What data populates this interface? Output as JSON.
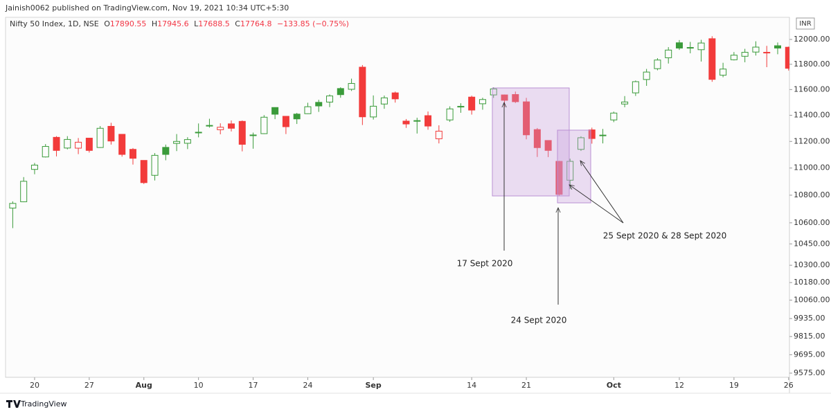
{
  "header": "Jainish0062 published on TradingView.com, Nov 19, 2021 10:34 UTC+5:30",
  "legend": {
    "symbol": "Nifty 50 Index, 1D, NSE",
    "o_label": "O",
    "o": 17890.55,
    "h_label": "H",
    "h": 17945.6,
    "l_label": "L",
    "l": 17688.5,
    "c_label": "C",
    "c": 17764.8,
    "change": "−133.85 (−0.75%)"
  },
  "currency": "INR",
  "footer": "TradingView",
  "annotations": [
    "17 Sept 2020",
    "24 Sept 2020",
    "25 Sept 2020 & 28 Sept 2020"
  ],
  "chart_data": {
    "type": "candlestick",
    "log": true,
    "grid": false,
    "up_color": "#3a9b3a",
    "down_color": "#f23b3b",
    "x": [
      "2020-07-16",
      "2020-07-17",
      "2020-07-20",
      "2020-07-21",
      "2020-07-22",
      "2020-07-23",
      "2020-07-24",
      "2020-07-27",
      "2020-07-28",
      "2020-07-29",
      "2020-07-30",
      "2020-07-31",
      "2020-08-03",
      "2020-08-04",
      "2020-08-05",
      "2020-08-06",
      "2020-08-07",
      "2020-08-10",
      "2020-08-11",
      "2020-08-12",
      "2020-08-13",
      "2020-08-14",
      "2020-08-17",
      "2020-08-18",
      "2020-08-19",
      "2020-08-20",
      "2020-08-21",
      "2020-08-24",
      "2020-08-25",
      "2020-08-26",
      "2020-08-27",
      "2020-08-28",
      "2020-08-31",
      "2020-09-01",
      "2020-09-02",
      "2020-09-03",
      "2020-09-04",
      "2020-09-07",
      "2020-09-08",
      "2020-09-09",
      "2020-09-10",
      "2020-09-11",
      "2020-09-14",
      "2020-09-15",
      "2020-09-16",
      "2020-09-17",
      "2020-09-18",
      "2020-09-21",
      "2020-09-22",
      "2020-09-23",
      "2020-09-24",
      "2020-09-25",
      "2020-09-28",
      "2020-09-29",
      "2020-09-30",
      "2020-10-01",
      "2020-10-05",
      "2020-10-06",
      "2020-10-07",
      "2020-10-08",
      "2020-10-09",
      "2020-10-12",
      "2020-10-13",
      "2020-10-14",
      "2020-10-15",
      "2020-10-16",
      "2020-10-19",
      "2020-10-20",
      "2020-10-21",
      "2020-10-22",
      "2020-10-23",
      "2020-10-26"
    ],
    "open": [
      10706,
      10752,
      10990,
      11083,
      11231,
      11150,
      11149,
      11225,
      11154,
      11315,
      11254,
      11140,
      11057,
      10946,
      11155,
      11185,
      11186,
      11270,
      11322,
      11289,
      11334,
      11353,
      11249,
      11259,
      11460,
      11392,
      11409,
      11412,
      11500,
      11502,
      11608,
      11602,
      11777,
      11387,
      11487,
      11574,
      11355,
      11359,
      11397,
      11220,
      11364,
      11469,
      11541,
      11489,
      11558,
      11558,
      11561,
      11504,
      11290,
      11207,
      11050,
      10910,
      11140,
      11288,
      11244,
      11364,
      11487,
      11574,
      11679,
      11765,
      11852,
      11973,
      11935,
      11917,
      12006,
      11713,
      11836,
      11864,
      11898,
      11891,
      11949,
      11937
    ],
    "high": [
      10755,
      10933,
      11038,
      11180,
      11240,
      11240,
      11226,
      11225,
      11317,
      11342,
      11255,
      11150,
      11058,
      11112,
      11176,
      11256,
      11232,
      11337,
      11373,
      11338,
      11360,
      11360,
      11267,
      11401,
      11461,
      11392,
      11418,
      11497,
      11520,
      11562,
      11618,
      11686,
      11794,
      11554,
      11553,
      11584,
      11371,
      11381,
      11429,
      11323,
      11469,
      11493,
      11552,
      11536,
      11618,
      11561,
      11584,
      11535,
      11302,
      11209,
      11054,
      11070,
      11239,
      11305,
      11295,
      11428,
      11549,
      11671,
      11763,
      11849,
      11938,
      11995,
      11980,
      11997,
      12026,
      11812,
      11898,
      11924,
      11985,
      11948,
      11975,
      11942
    ],
    "low": [
      10562,
      10749,
      10954,
      11079,
      11087,
      11140,
      11104,
      11116,
      11151,
      11176,
      11085,
      11026,
      10882,
      10908,
      11058,
      11127,
      11142,
      11231,
      11305,
      11254,
      11276,
      11125,
      11145,
      11256,
      11370,
      11256,
      11333,
      11410,
      11426,
      11463,
      11536,
      11589,
      11325,
      11367,
      11450,
      11498,
      11303,
      11260,
      11289,
      11185,
      11349,
      11419,
      11405,
      11443,
      11535,
      11463,
      11495,
      11216,
      11083,
      11082,
      10794,
      10844,
      11128,
      11183,
      11185,
      11347,
      11462,
      11550,
      11629,
      11752,
      11806,
      11915,
      11888,
      11822,
      11661,
      11697,
      11831,
      11816,
      11870,
      11777,
      11880,
      11750
    ],
    "close": [
      10740,
      10902,
      11022,
      11162,
      11132,
      11215,
      11194,
      11132,
      11300,
      11203,
      11102,
      11073,
      10892,
      11095,
      11102,
      11200,
      11214,
      11270,
      11322,
      11308,
      11300,
      11178,
      11247,
      11385,
      11408,
      11312,
      11372,
      11466,
      11472,
      11550,
      11560,
      11648,
      11388,
      11470,
      11535,
      11527,
      11333,
      11355,
      11317,
      11278,
      11449,
      11464,
      11440,
      11522,
      11605,
      11516,
      11505,
      11250,
      11153,
      11132,
      10806,
      11050,
      11228,
      11222,
      11248,
      11417,
      11503,
      11662,
      11738,
      11834,
      11914,
      11930,
      11934,
      11971,
      11680,
      11762,
      11873,
      11896,
      11938,
      11896,
      11930,
      11768
    ],
    "ylim": [
      9548,
      12181
    ],
    "yticks": [
      {
        "value": 12000,
        "label": "12000.00"
      },
      {
        "value": 11800,
        "label": "11800.00"
      },
      {
        "value": 11600,
        "label": "11600.00"
      },
      {
        "value": 11400,
        "label": "11400.00"
      },
      {
        "value": 11200,
        "label": "11200.00"
      },
      {
        "value": 11000,
        "label": "11000.00"
      },
      {
        "value": 10800,
        "label": "10800.00"
      },
      {
        "value": 10600,
        "label": "10600.00"
      },
      {
        "value": 10450,
        "label": "10450.00"
      },
      {
        "value": 10300,
        "label": "10300.00"
      },
      {
        "value": 10180,
        "label": "10180.00"
      },
      {
        "value": 10060,
        "label": "10060.00"
      },
      {
        "value": 9935,
        "label": "9935.00"
      },
      {
        "value": 9815,
        "label": "9815.00"
      },
      {
        "value": 9695,
        "label": "9695.00"
      },
      {
        "value": 9575,
        "label": "9575.00"
      }
    ],
    "xticks": [
      {
        "value": "2020-07-20",
        "label": "20"
      },
      {
        "value": "2020-07-27",
        "label": "27"
      },
      {
        "value": "2020-08-03",
        "label": "Aug"
      },
      {
        "value": "2020-08-10",
        "label": "10"
      },
      {
        "value": "2020-08-17",
        "label": "17"
      },
      {
        "value": "2020-08-24",
        "label": "24"
      },
      {
        "value": "2020-09-01",
        "label": "Sep"
      },
      {
        "value": "2020-09-14",
        "label": "14"
      },
      {
        "value": "2020-09-21",
        "label": "21"
      },
      {
        "value": "2020-10-01",
        "label": "Oct"
      },
      {
        "value": "2020-10-12",
        "label": "12"
      },
      {
        "value": "2020-10-19",
        "label": "19"
      },
      {
        "value": "2020-10-26",
        "label": "26"
      }
    ]
  }
}
